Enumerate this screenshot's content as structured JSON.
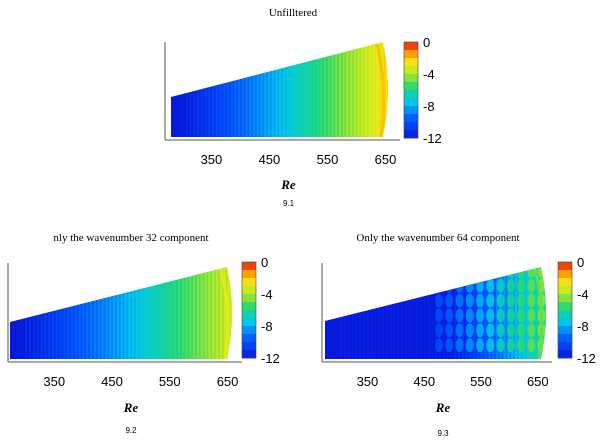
{
  "chart_data": [
    {
      "type": "heatmap",
      "title": "Unfilltered",
      "xlabel": "Re",
      "caption": "9.1",
      "x_ticks": [
        350,
        450,
        550,
        650
      ],
      "xlim": [
        270,
        675
      ],
      "colorbar": {
        "ticks": [
          "0",
          "-4",
          "-8",
          "-12"
        ],
        "range": [
          -12,
          0
        ]
      },
      "field": {
        "low": -12,
        "high": -2,
        "texture": "stripes"
      }
    },
    {
      "type": "heatmap",
      "title": "nly the wavenumber 32 component",
      "xlabel": "Re",
      "caption": "9.2",
      "x_ticks": [
        350,
        450,
        550,
        650
      ],
      "xlim": [
        270,
        675
      ],
      "colorbar": {
        "ticks": [
          "0",
          "-4",
          "-8",
          "-12"
        ],
        "range": [
          -12,
          0
        ]
      },
      "field": {
        "low": -12,
        "high": -3,
        "texture": "stripes"
      }
    },
    {
      "type": "heatmap",
      "title": "Only the wavenumber 64 component",
      "xlabel": "Re",
      "caption": "9.3",
      "x_ticks": [
        350,
        450,
        550,
        650
      ],
      "xlim": [
        270,
        675
      ],
      "colorbar": {
        "ticks": [
          "0",
          "-4",
          "-8",
          "-12"
        ],
        "range": [
          -12,
          0
        ]
      },
      "field": {
        "low": -12,
        "high": -5,
        "texture": "blobs"
      }
    }
  ]
}
